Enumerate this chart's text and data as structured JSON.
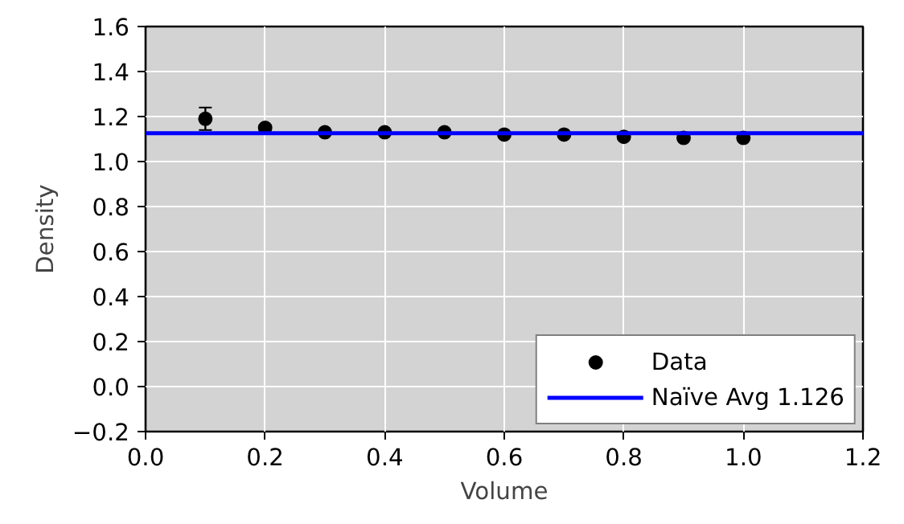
{
  "chart_data": {
    "type": "scatter",
    "xlabel": "Volume",
    "ylabel": "Density",
    "x": [
      0.1,
      0.2,
      0.3,
      0.4,
      0.5,
      0.6,
      0.7,
      0.8,
      0.9,
      1.0
    ],
    "series": [
      {
        "name": "Data",
        "color": "#000000",
        "marker": "circle",
        "values": [
          1.19,
          1.15,
          1.13,
          1.13,
          1.13,
          1.12,
          1.12,
          1.11,
          1.105,
          1.105
        ],
        "errors": [
          0.05,
          0.012,
          0.01,
          0.008,
          0.006,
          0.005,
          0.005,
          0.005,
          0.005,
          0.005
        ]
      },
      {
        "name": "Naïve Avg 1.126",
        "type": "line",
        "color": "#0000ff",
        "x": [
          0.0,
          1.2
        ],
        "values": [
          1.126,
          1.126
        ]
      }
    ],
    "xlim": [
      0.0,
      1.2
    ],
    "ylim": [
      -0.2,
      1.6
    ],
    "xticks": [
      {
        "value": 0,
        "label": "0.0"
      },
      0.2,
      0.4,
      0.6,
      0.8,
      {
        "value": 1,
        "label": "1.0"
      },
      1.2
    ],
    "yticks": [
      -0.2,
      {
        "value": 0,
        "label": "0.0"
      },
      0.2,
      0.4,
      0.6,
      0.8,
      {
        "value": 1,
        "label": "1.0"
      },
      1.2,
      1.4,
      1.6
    ],
    "grid": true,
    "legend": "bottom right",
    "line_style": "solid"
  }
}
